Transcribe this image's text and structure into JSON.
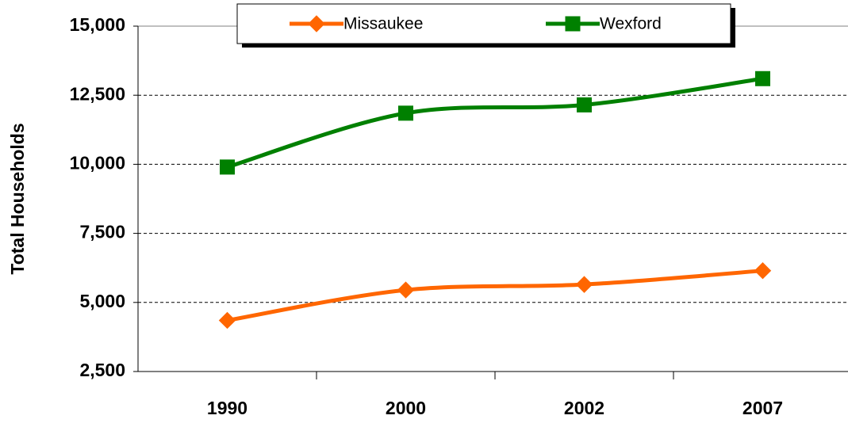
{
  "chart_data": {
    "type": "line",
    "y_label": "Total Households",
    "categories": [
      "1990",
      "2000",
      "2002",
      "2007"
    ],
    "series": [
      {
        "name": "Missaukee",
        "color": "#ff6600",
        "marker": "diamond",
        "values": [
          4350,
          5450,
          5650,
          6150
        ]
      },
      {
        "name": "Wexford",
        "color": "#008000",
        "marker": "square",
        "values": [
          9900,
          11850,
          12150,
          13100
        ]
      }
    ],
    "ylim": [
      2500,
      15000
    ],
    "yticks": [
      {
        "value": 2500,
        "label": "2,500"
      },
      {
        "value": 5000,
        "label": "5,000"
      },
      {
        "value": 7500,
        "label": "7,500"
      },
      {
        "value": 10000,
        "label": "10,000"
      },
      {
        "value": 12500,
        "label": "12,500"
      },
      {
        "value": 15000,
        "label": "15,000"
      }
    ],
    "grid": true,
    "smooth": true,
    "legend": "top"
  }
}
